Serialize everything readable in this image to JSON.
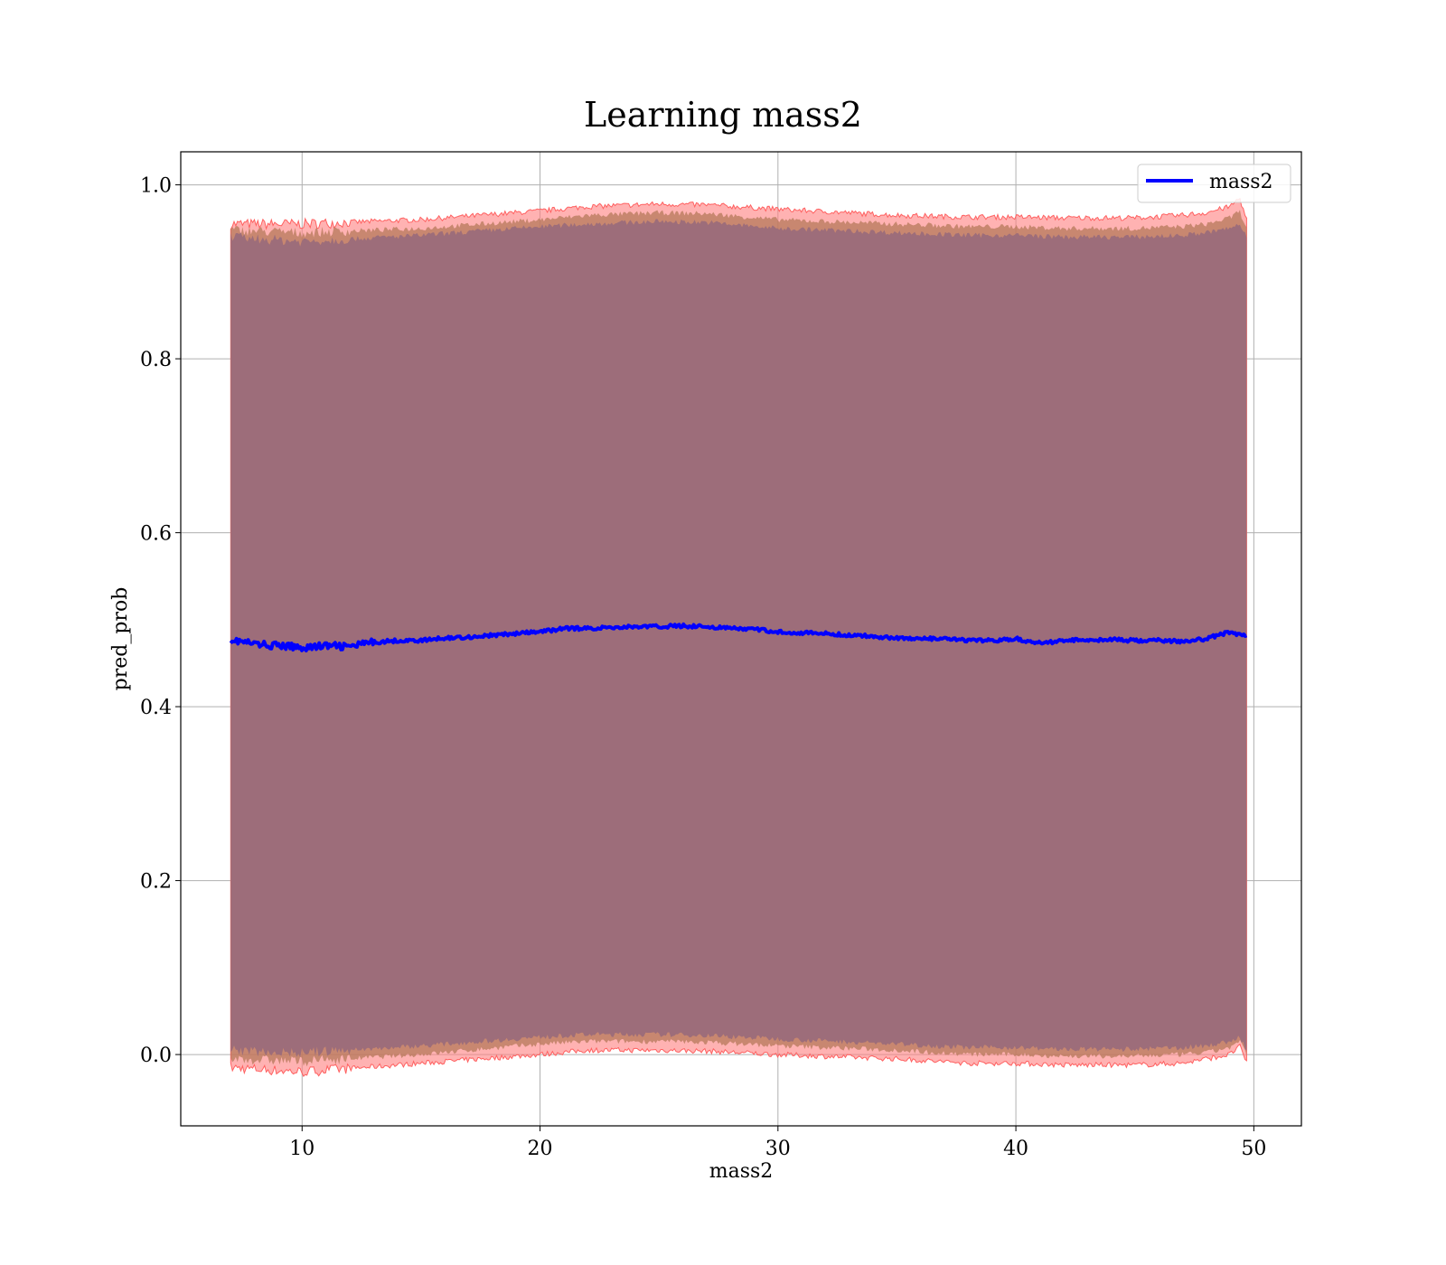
{
  "chart_data": {
    "type": "line",
    "title": "Learning mass2",
    "xlabel": "mass2",
    "ylabel": "pred_prob",
    "xlim": [
      4.9,
      52.0
    ],
    "ylim": [
      -0.082,
      1.038
    ],
    "xticks": [
      10,
      20,
      30,
      40,
      50
    ],
    "xtick_labels": [
      "10",
      "20",
      "30",
      "40",
      "50"
    ],
    "yticks": [
      0.0,
      0.2,
      0.4,
      0.6,
      0.8,
      1.0
    ],
    "ytick_labels": [
      "0.0",
      "0.2",
      "0.4",
      "0.6",
      "0.8",
      "1.0"
    ],
    "grid": true,
    "legend_position": "upper right",
    "colors": {
      "line": "#0000ff",
      "outer_band": "#ff7f7f",
      "outer_band_edge": "#ff6060",
      "middle_band": "#b5785a",
      "inner_band": "#9d6d7a",
      "grid": "#b0b0b0"
    },
    "series": [
      {
        "name": "mass2",
        "x": [
          7,
          8,
          9,
          10,
          11,
          12,
          13,
          14,
          15,
          16,
          17,
          18,
          19,
          20,
          21,
          22,
          23,
          24,
          25,
          26,
          27,
          28,
          29,
          30,
          31,
          32,
          33,
          34,
          35,
          36,
          37,
          38,
          39,
          40,
          41,
          42,
          43,
          44,
          45,
          46,
          47,
          48,
          49,
          49.7
        ],
        "y": [
          0.477,
          0.472,
          0.47,
          0.468,
          0.47,
          0.469,
          0.474,
          0.476,
          0.476,
          0.479,
          0.48,
          0.482,
          0.484,
          0.486,
          0.49,
          0.49,
          0.491,
          0.492,
          0.492,
          0.493,
          0.492,
          0.49,
          0.489,
          0.486,
          0.485,
          0.484,
          0.482,
          0.481,
          0.479,
          0.478,
          0.478,
          0.476,
          0.476,
          0.478,
          0.473,
          0.476,
          0.477,
          0.477,
          0.476,
          0.476,
          0.475,
          0.478,
          0.486,
          0.481
        ]
      }
    ],
    "bands": [
      {
        "name": "outer",
        "x": [
          7,
          10,
          15,
          20,
          22,
          25,
          27,
          30,
          35,
          38,
          40,
          42,
          45,
          47,
          48,
          49,
          49.4,
          49.7
        ],
        "upper": [
          0.955,
          0.955,
          0.96,
          0.97,
          0.975,
          0.978,
          0.977,
          0.972,
          0.965,
          0.963,
          0.963,
          0.962,
          0.962,
          0.965,
          0.968,
          0.975,
          0.985,
          0.96
        ],
        "lower": [
          -0.015,
          -0.02,
          -0.01,
          0.0,
          0.005,
          0.005,
          0.004,
          0.0,
          -0.005,
          -0.01,
          -0.01,
          -0.012,
          -0.012,
          -0.01,
          -0.005,
          0.0,
          0.01,
          -0.01
        ]
      },
      {
        "name": "middle",
        "x": [
          7,
          10,
          15,
          20,
          22,
          25,
          27,
          30,
          35,
          38,
          40,
          42,
          45,
          47,
          48,
          49,
          49.4,
          49.7
        ],
        "upper": [
          0.948,
          0.945,
          0.95,
          0.96,
          0.965,
          0.968,
          0.967,
          0.96,
          0.955,
          0.952,
          0.952,
          0.95,
          0.95,
          0.952,
          0.955,
          0.962,
          0.97,
          0.95
        ],
        "lower": [
          -0.005,
          -0.008,
          0.0,
          0.012,
          0.015,
          0.015,
          0.014,
          0.01,
          0.005,
          0.0,
          0.0,
          -0.002,
          -0.002,
          0.0,
          0.002,
          0.008,
          0.015,
          0.0
        ]
      },
      {
        "name": "inner",
        "x": [
          7,
          10,
          15,
          20,
          22,
          25,
          27,
          30,
          35,
          38,
          40,
          42,
          45,
          47,
          48,
          49,
          49.4,
          49.7
        ],
        "upper": [
          0.94,
          0.935,
          0.942,
          0.952,
          0.955,
          0.958,
          0.957,
          0.95,
          0.945,
          0.942,
          0.942,
          0.94,
          0.94,
          0.942,
          0.945,
          0.95,
          0.955,
          0.94
        ],
        "lower": [
          0.005,
          0.002,
          0.01,
          0.02,
          0.023,
          0.023,
          0.022,
          0.018,
          0.012,
          0.008,
          0.008,
          0.006,
          0.006,
          0.008,
          0.01,
          0.015,
          0.02,
          0.005
        ]
      }
    ]
  }
}
